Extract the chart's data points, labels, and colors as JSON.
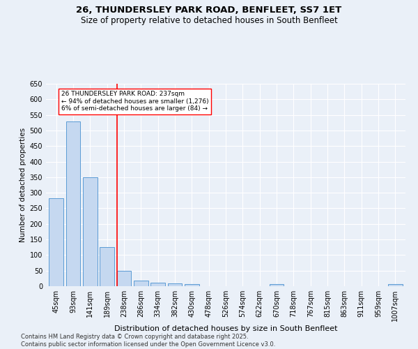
{
  "title1": "26, THUNDERSLEY PARK ROAD, BENFLEET, SS7 1ET",
  "title2": "Size of property relative to detached houses in South Benfleet",
  "xlabel": "Distribution of detached houses by size in South Benfleet",
  "ylabel": "Number of detached properties",
  "categories": [
    "45sqm",
    "93sqm",
    "141sqm",
    "189sqm",
    "238sqm",
    "286sqm",
    "334sqm",
    "382sqm",
    "430sqm",
    "478sqm",
    "526sqm",
    "574sqm",
    "622sqm",
    "670sqm",
    "718sqm",
    "767sqm",
    "815sqm",
    "863sqm",
    "911sqm",
    "959sqm",
    "1007sqm"
  ],
  "values": [
    283,
    530,
    350,
    125,
    50,
    17,
    11,
    10,
    7,
    0,
    0,
    0,
    0,
    6,
    0,
    0,
    0,
    0,
    0,
    0,
    6
  ],
  "bar_color": "#c5d8f0",
  "bar_edge_color": "#5b9bd5",
  "red_line_index": 4,
  "property_label": "26 THUNDERSLEY PARK ROAD: 237sqm",
  "annotation_line1": "← 94% of detached houses are smaller (1,276)",
  "annotation_line2": "6% of semi-detached houses are larger (84) →",
  "ylim": [
    0,
    650
  ],
  "yticks": [
    0,
    50,
    100,
    150,
    200,
    250,
    300,
    350,
    400,
    450,
    500,
    550,
    600,
    650
  ],
  "footer": "Contains HM Land Registry data © Crown copyright and database right 2025.\nContains public sector information licensed under the Open Government Licence v3.0.",
  "bg_color": "#eaf0f8",
  "plot_bg_color": "#eaf0f8",
  "grid_color": "#ffffff",
  "title1_fontsize": 9.5,
  "title2_fontsize": 8.5,
  "axis_fontsize": 7,
  "ylabel_fontsize": 7.5,
  "xlabel_fontsize": 8,
  "annotation_fontsize": 6.5,
  "footer_fontsize": 6
}
